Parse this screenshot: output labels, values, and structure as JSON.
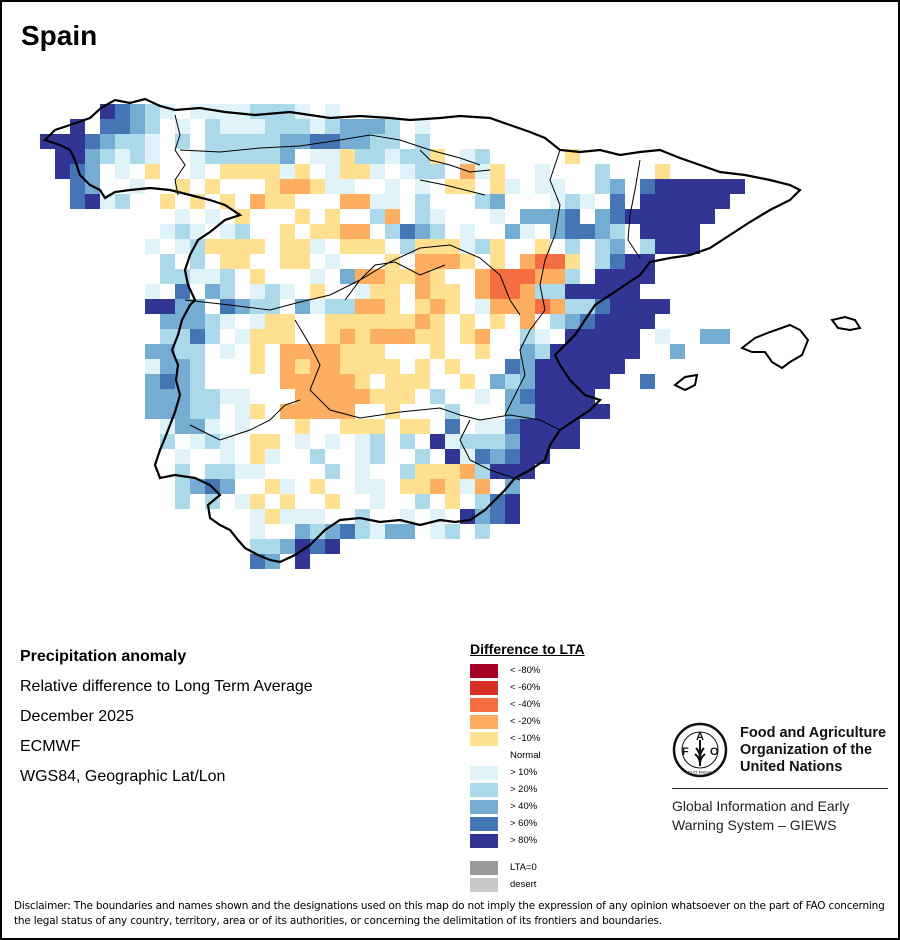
{
  "title": "Spain",
  "info": {
    "heading": "Precipitation anomaly",
    "subtitle": "Relative difference to Long Term Average",
    "period": "December 2025",
    "source": "ECMWF",
    "projection": "WGS84, Geographic Lat/Lon"
  },
  "legend": {
    "title": "Difference to LTA",
    "items": [
      {
        "code": "A",
        "label": "< -80%",
        "color": "#a50026"
      },
      {
        "code": "B",
        "label": "< -60%",
        "color": "#d73027"
      },
      {
        "code": "C",
        "label": "< -40%",
        "color": "#f46d43"
      },
      {
        "code": "D",
        "label": "< -20%",
        "color": "#fdae61"
      },
      {
        "code": "E",
        "label": "< -10%",
        "color": "#fee090"
      },
      {
        "code": ".",
        "label": "Normal",
        "color": "#ffffff"
      },
      {
        "code": "1",
        "label": "> 10%",
        "color": "#e0f3f8"
      },
      {
        "code": "2",
        "label": "> 20%",
        "color": "#abd9e9"
      },
      {
        "code": "3",
        "label": "> 40%",
        "color": "#74add1"
      },
      {
        "code": "4",
        "label": "> 60%",
        "color": "#4575b4"
      },
      {
        "code": "5",
        "label": "> 80%",
        "color": "#313695"
      }
    ],
    "extra": [
      {
        "label": "LTA=0",
        "color": "#999999"
      },
      {
        "label": "desert",
        "color": "#c8c8c8"
      }
    ]
  },
  "fao": {
    "name_lines": [
      "Food and Agriculture",
      "Organization of the",
      "United Nations"
    ],
    "emblem_letters": "FAO",
    "emblem_motto": "FIAT PANIS",
    "giews_lines": [
      "Global Information and Early",
      "Warning System – GIEWS"
    ]
  },
  "disclaimer": "Disclaimer: The boundaries and names shown and the designations used on this map do not imply the expression of any opinion whatsoever on the part of FAO concerning the legal status of any country, territory, area or of its authorities, or concerning the delimitation of its frontiers and boundaries.",
  "map_grid": {
    "description": "Gridded precipitation anomaly classes; each character is one grid cell (row = north to south, column = west to east). Codes match legend.items[].code; space = outside country.",
    "rows": [
      "    54321 11112221 1                          ",
      "  5 4432.1.2111222123332 1                    ",
      "55543221.2.2222233443322 2..                  ",
      " 5532121..1222223 11E22122E.12 .   E          ",
      " 543.1.E..1.EEEE1E.1EE1 122.D1E  1   2   E   ",
      "  43..1..E.E...EDDE11 .1.1.EE.E1.11 .23.4555555",
      "  4512..E.E.E.DEE...DD11.2...23...121.4.555555 ",
      "        .1.1.E...E.E..2D.21...1.3334 34555555  ",
      "       .121.12..E.EEDD.2432.1..31.34432.5555   ",
      "       1.12EEEE.EE1.EEE.2EEE12E..E.2.23.2555   ",
      "       .2.2.EE..EE.1...E.DDDE.E.DCCE.2455      ",
      "       .22112.E...1.3DDEEDE..DCCCDD2.5555      ",
      "       1.4 32.121.E..1EE.DEE.DCCD2255555       ",
      "       5533.4322.3122DDE.EDE.1DDDCD2245555      ",
      "        33321.1EE..EEEEEEDE.E.E.D.2345555      ",
      "        2242.1EEE..EDEDDDEE.ED..21.55555 1  33 ",
      "       3322.1.E.DDDDEEE...E..E..32555555  3   ",
      "       1332...E.DEDDEEEE.E.E...43555555       ",
      "       3432.....DDDDDE.EEE..E.32355555  4     ",
      "       3332211...DDDDDEEE.2..1.345555         ",
      "       33322.1E.DDDDD..E...2...3355555        ",
      "        1331.1...E..EEE.EE.4.1145555          ",
      "        2.121.EE.1.1.12.2.5122235555          ",
      "         1..1.E1..2..12..2.5143455           ",
      "         2.2211....2.1..2EEED2555            ",
      "         2343..E1.E..11.EEDE1D.3.            ",
      "         2.2.1E.E..E..1..2.E.245             ",
      "             .1E111..2..1.1.5345             ",
      "             .1..32342133.12.2               ",
      "              223545.                        ",
      "              43 5                            "
    ]
  }
}
